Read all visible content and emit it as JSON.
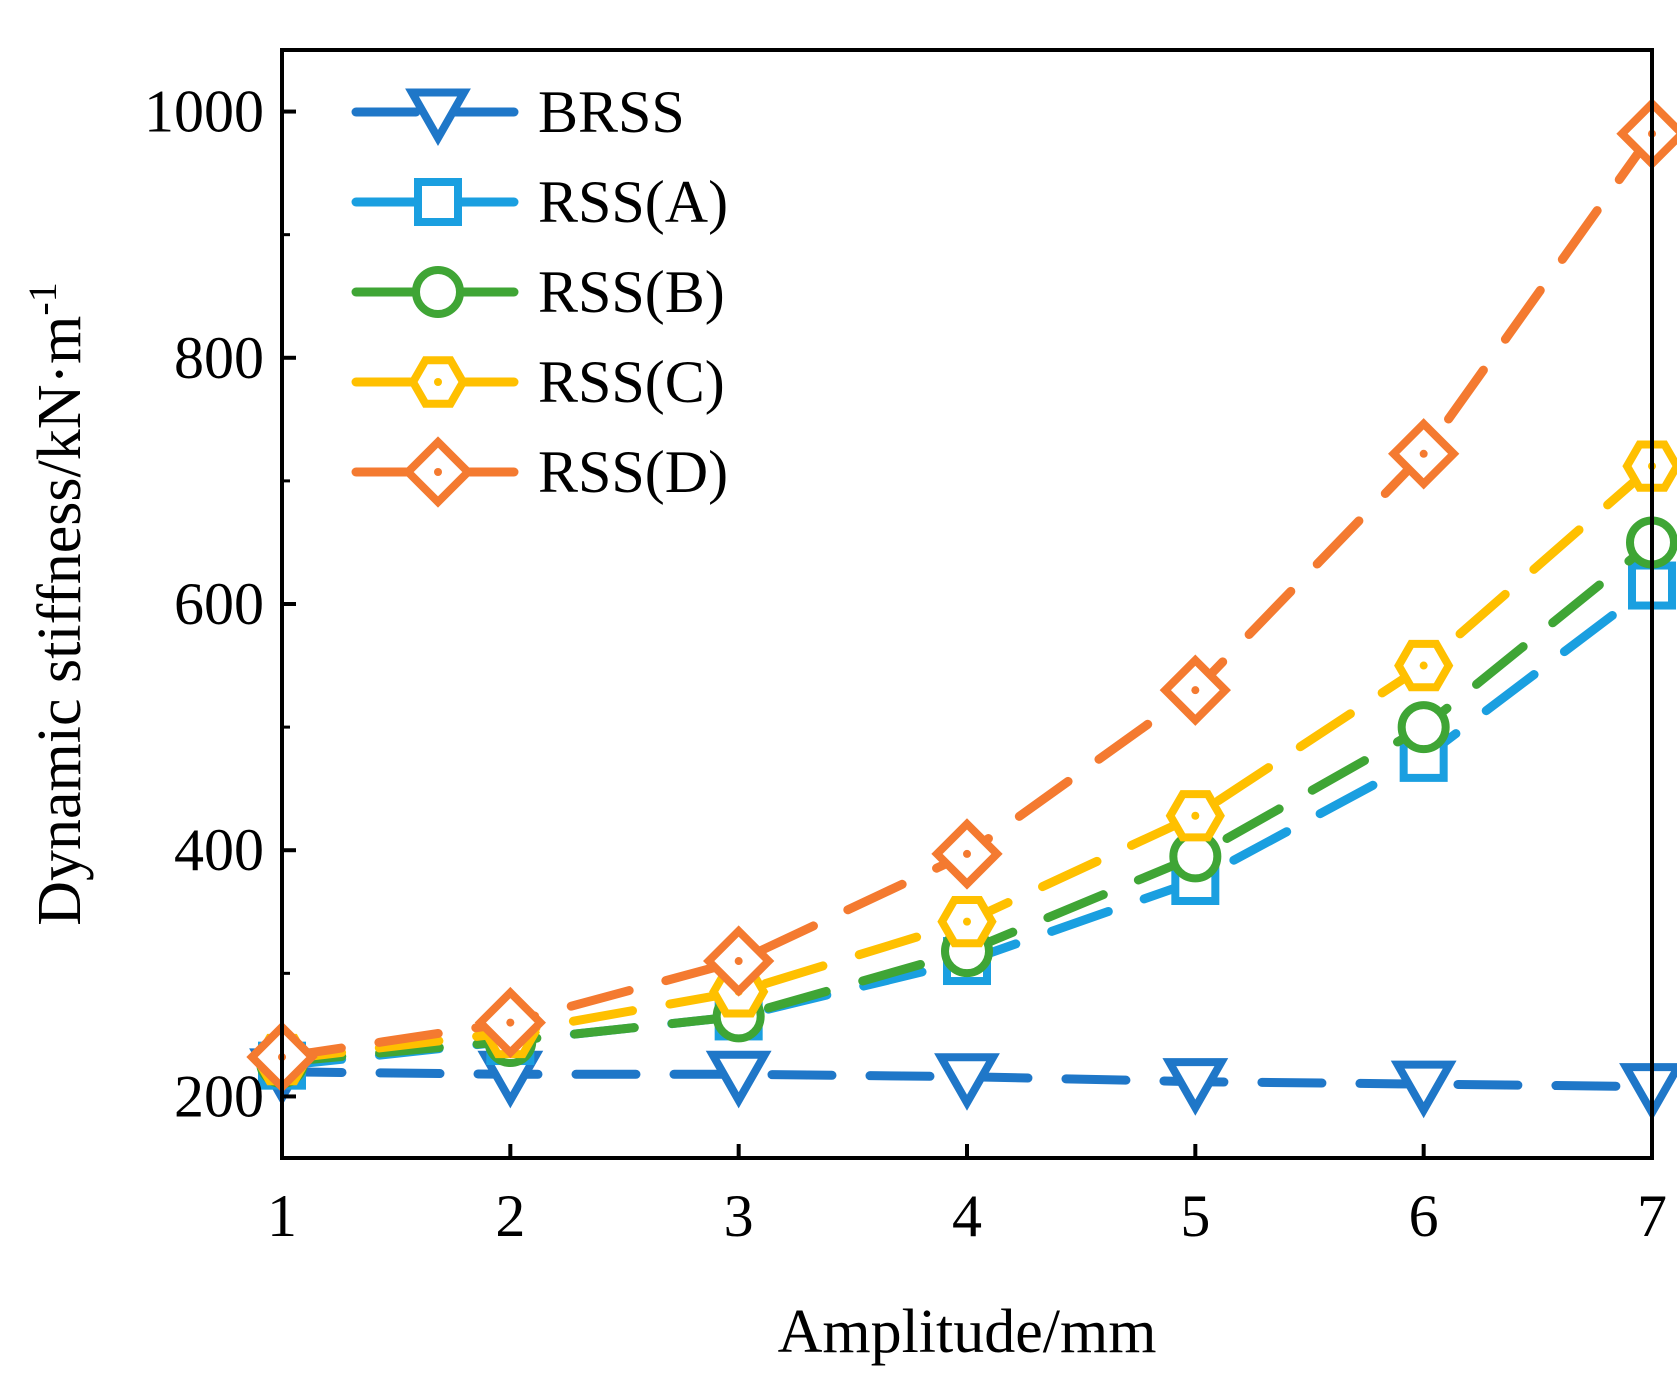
{
  "chart_data": {
    "type": "line",
    "title": "",
    "xlabel": "Amplitude/mm",
    "ylabel_main": "Dynamic stiffness/kN·m",
    "ylabel_sup": "-1",
    "x": [
      1,
      2,
      3,
      4,
      5,
      6,
      7
    ],
    "xlim": [
      1,
      7
    ],
    "ylim": [
      150,
      1050
    ],
    "xticks": [
      "1",
      "2",
      "3",
      "4",
      "5",
      "6",
      "7"
    ],
    "yticks": [
      200,
      400,
      600,
      800,
      1000
    ],
    "ytick_labels": [
      "200",
      "400",
      "600",
      "800",
      "1000"
    ],
    "grid": false,
    "legend_position": "top-left",
    "series": [
      {
        "name": "BRSS",
        "color": "#1F77C8",
        "marker": "triangle-down",
        "values": [
          220,
          218,
          218,
          216,
          212,
          210,
          208
        ]
      },
      {
        "name": "RSS(A)",
        "color": "#1A9FE0",
        "marker": "square",
        "values": [
          225,
          245,
          265,
          310,
          375,
          475,
          615
        ]
      },
      {
        "name": "RSS(B)",
        "color": "#3FA535",
        "marker": "circle",
        "values": [
          228,
          245,
          265,
          318,
          395,
          500,
          650
        ]
      },
      {
        "name": "RSS(C)",
        "color": "#FFC000",
        "marker": "hexagon",
        "values": [
          230,
          252,
          285,
          342,
          428,
          550,
          712
        ]
      },
      {
        "name": "RSS(D)",
        "color": "#F47A30",
        "marker": "diamond",
        "values": [
          232,
          260,
          310,
          397,
          530,
          722,
          982
        ]
      }
    ]
  }
}
